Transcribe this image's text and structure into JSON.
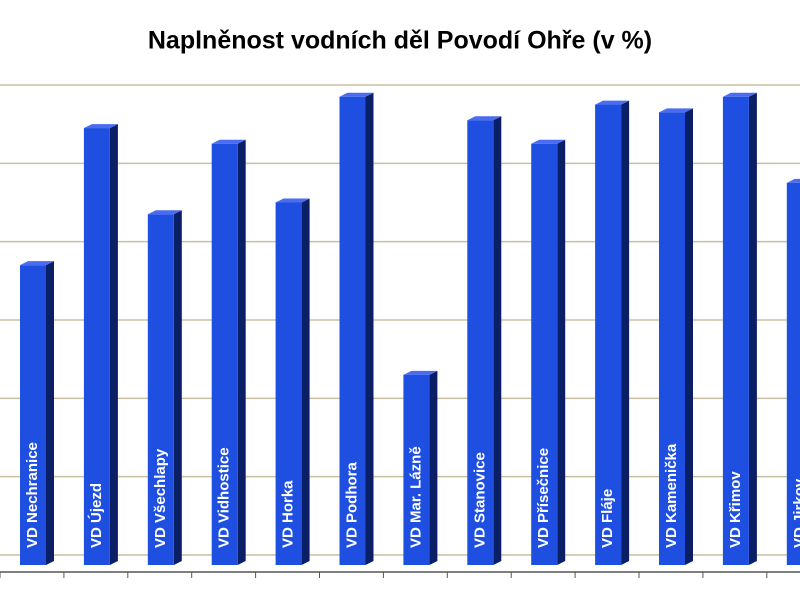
{
  "chart_data": {
    "type": "bar",
    "title": "Naplněnost vodních děl Povodí Ohře (v %)",
    "categories": [
      "VD Nechranice",
      "VD Újezd",
      "VD Všechlapy",
      "VD Vidhostice",
      "VD Horka",
      "VD Podhora",
      "VD Mar. Lázně",
      "VD Stanovice",
      "VD Přísečnice",
      "VD Fláje",
      "VD Kamenička",
      "VD Křimov",
      "VD Jirkov"
    ],
    "values": [
      74,
      109,
      87,
      105,
      90,
      117,
      46,
      111,
      105,
      115,
      113,
      117,
      95
    ],
    "color": "#1f4fe0",
    "ylim": [
      0,
      120
    ],
    "yticks": [
      0,
      20,
      40,
      60,
      80,
      100,
      120
    ],
    "grid": true
  }
}
